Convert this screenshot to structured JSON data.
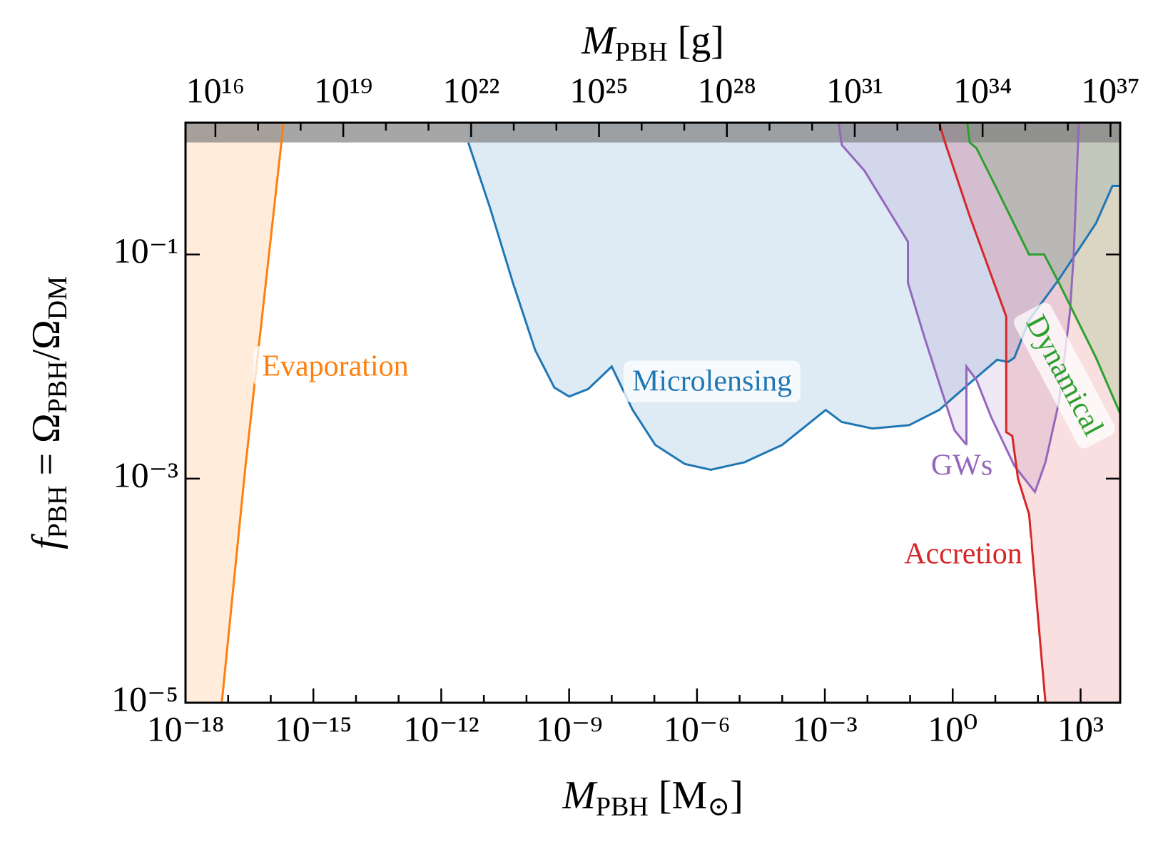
{
  "chart_data": {
    "type": "area",
    "xlabel": [
      "M",
      "PBH",
      " [M",
      "⊙",
      "]"
    ],
    "x2label": [
      "M",
      "PBH",
      " [g]"
    ],
    "ylabel": [
      "f",
      "PBH",
      " = Ω",
      "PBH",
      "/Ω",
      "DM"
    ],
    "xscale": "log",
    "yscale": "log",
    "xlim": [
      1e-18,
      8500
    ],
    "x2lim": [
      1989000000000000.0,
      1.69e+37
    ],
    "ylim": [
      1e-05,
      1.5
    ],
    "xticks": [
      {
        "value": 1e-18,
        "label": "10⁻¹⁸"
      },
      {
        "value": 1e-15,
        "label": "10⁻¹⁵"
      },
      {
        "value": 1e-12,
        "label": "10⁻¹²"
      },
      {
        "value": 1e-09,
        "label": "10⁻⁹"
      },
      {
        "value": 1e-06,
        "label": "10⁻⁶"
      },
      {
        "value": 0.001,
        "label": "10⁻³"
      },
      {
        "value": 1,
        "label": "10⁰"
      },
      {
        "value": 1000,
        "label": "10³"
      }
    ],
    "x2ticks": [
      {
        "value": 1e+16,
        "label": "10¹⁶"
      },
      {
        "value": 1e+19,
        "label": "10¹⁹"
      },
      {
        "value": 1e+22,
        "label": "10²²"
      },
      {
        "value": 1e+25,
        "label": "10²⁵"
      },
      {
        "value": 1e+28,
        "label": "10²⁸"
      },
      {
        "value": 1e+31,
        "label": "10³¹"
      },
      {
        "value": 1e+34,
        "label": "10³⁴"
      },
      {
        "value": 1e+37,
        "label": "10³⁷"
      }
    ],
    "yticks": [
      {
        "value": 1e-05,
        "label": "10⁻⁵"
      },
      {
        "value": 0.001,
        "label": "10⁻³"
      },
      {
        "value": 0.1,
        "label": "10⁻¹"
      }
    ],
    "xminorticks": [
      1e-17,
      1e-16,
      1e-14,
      1e-13,
      1e-11,
      1e-10,
      1e-08,
      1e-07,
      1e-05,
      0.0001,
      0.01,
      0.1,
      10,
      100
    ],
    "x2minorticks": [
      1e+17,
      1e+18,
      1e+20,
      1e+21,
      1e+23,
      1e+24,
      1e+26,
      1e+27,
      1e+29,
      1e+30,
      1e+32,
      1e+33,
      1e+35,
      1e+36
    ],
    "shaded_region": {
      "ymin": 1,
      "color": "#808080"
    },
    "series": [
      {
        "name": "Evaporation",
        "color": "#ff7f0e",
        "fill": "left",
        "x": [
          7.1e-18,
          2.5e-17,
          2e-16
        ],
        "values": [
          1e-05,
          0.0012,
          1.5
        ]
      },
      {
        "name": "Microlensing",
        "color": "#1f77b4",
        "fill": "above",
        "x": [
          4.3e-12,
          1.4e-11,
          4.8e-11,
          1.6e-10,
          4.5e-10,
          1e-09,
          2.8e-09,
          1e-08,
          3.1e-08,
          1.05e-07,
          5.2e-07,
          2.1e-06,
          1.3e-05,
          0.0001,
          0.00105,
          0.0025,
          0.013,
          0.095,
          0.48,
          2.5,
          11,
          20,
          28,
          62,
          310,
          690,
          2300,
          5600,
          8500
        ],
        "values": [
          1,
          0.26,
          0.056,
          0.014,
          0.0065,
          0.0054,
          0.0063,
          0.01,
          0.0041,
          0.002,
          0.00135,
          0.0012,
          0.0014,
          0.002,
          0.0041,
          0.0032,
          0.0028,
          0.003,
          0.0041,
          0.0071,
          0.0115,
          0.011,
          0.012,
          0.026,
          0.06,
          0.095,
          0.19,
          0.41,
          0.41
        ]
      },
      {
        "name": "GWs",
        "color": "#9467bd",
        "fill": "closed",
        "x": [
          0.0021,
          0.0025,
          0.0085,
          0.089,
          0.089,
          0.21,
          0.52,
          1.1,
          2.1,
          2.1,
          3.6,
          8.1,
          28,
          85,
          150,
          310,
          560,
          690,
          910
        ],
        "values": [
          1.5,
          0.95,
          0.56,
          0.13,
          0.056,
          0.019,
          0.0065,
          0.0027,
          0.002,
          0.01,
          0.0076,
          0.0035,
          0.0013,
          0.00076,
          0.0014,
          0.0048,
          0.03,
          0.1,
          1.5
        ]
      },
      {
        "name": "Accretion",
        "color": "#d62728",
        "fill": "right",
        "x": [
          0.48,
          0.66,
          2.5,
          18,
          18,
          25,
          34,
          62,
          91,
          150
        ],
        "values": [
          1.5,
          1,
          0.22,
          0.028,
          0.0026,
          0.0024,
          0.001,
          0.00048,
          8.9e-05,
          1e-05
        ]
      },
      {
        "name": "Dynamical",
        "color": "#2ca02c",
        "fill": "right",
        "x": [
          2.2,
          2.5,
          3.6,
          10,
          62,
          140,
          310,
          2300,
          8500
        ],
        "values": [
          1.5,
          1,
          0.89,
          0.41,
          0.1,
          0.1,
          0.056,
          0.012,
          0.0038
        ]
      }
    ]
  }
}
